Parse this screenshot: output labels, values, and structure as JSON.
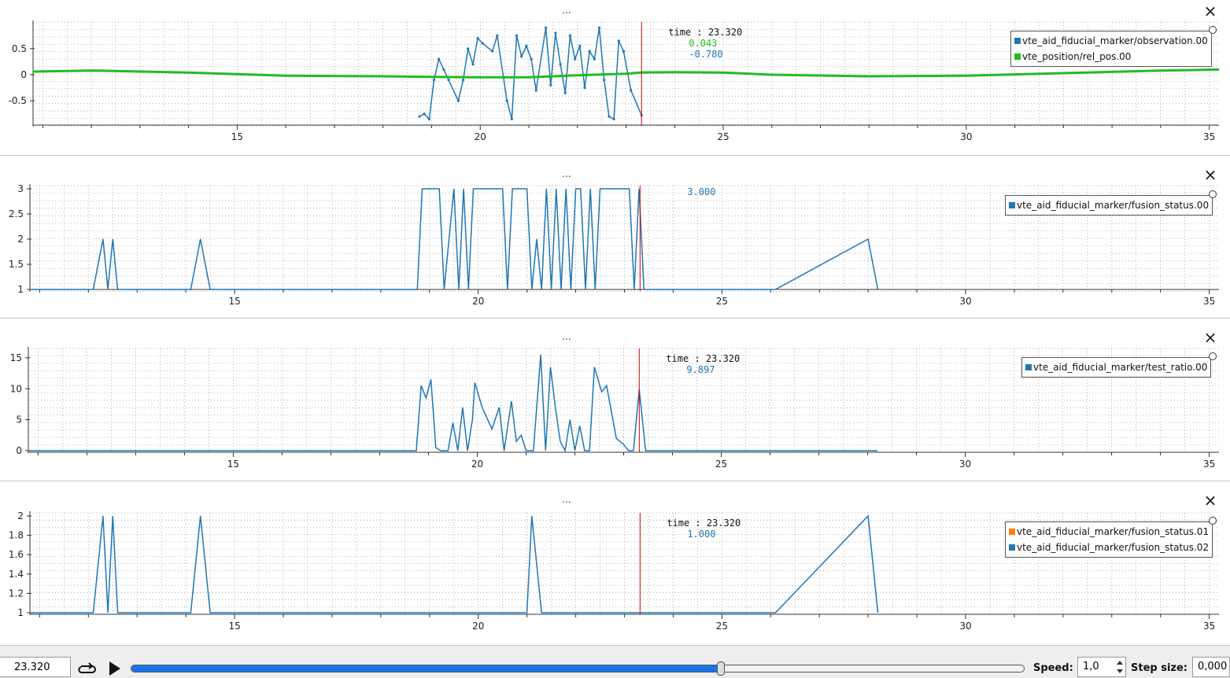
{
  "x_axis": {
    "range": [
      10.8,
      35.2
    ],
    "ticks": [
      15,
      20,
      25,
      30,
      35
    ]
  },
  "cursor": {
    "time_label": "time : 23.320",
    "time": 23.32,
    "color": "#dd0000"
  },
  "panels": [
    {
      "title": "...",
      "y_ticks": [
        "0.5",
        "0",
        "-0.5"
      ],
      "y_tick_values": [
        0.5,
        0,
        -0.5
      ],
      "ylim": [
        -0.95,
        0.95
      ],
      "legend": [
        {
          "label": "vte_aid_fiducial_marker/observation.00",
          "color": "#1f77b4"
        },
        {
          "label": "vte_position/rel_pos.00",
          "color": "#22bb22"
        }
      ],
      "tooltip": {
        "time": "time : 23.320",
        "values": [
          {
            "text": "0.043",
            "color": "#22bb22"
          },
          {
            "text": "-0.780",
            "color": "#1f77b4"
          }
        ]
      }
    },
    {
      "title": "...",
      "y_ticks": [
        "3",
        "2.5",
        "2",
        "1.5",
        "1"
      ],
      "y_tick_values": [
        3,
        2.5,
        2,
        1.5,
        1
      ],
      "ylim": [
        1,
        3
      ],
      "legend": [
        {
          "label": "vte_aid_fiducial_marker/fusion_status.00",
          "color": "#1f77b4"
        }
      ],
      "tooltip": {
        "time": "",
        "values": [
          {
            "text": "3.000",
            "color": "#1f77b4"
          }
        ]
      }
    },
    {
      "title": "...",
      "y_ticks": [
        "15",
        "10",
        "5",
        "0"
      ],
      "y_tick_values": [
        15,
        10,
        5,
        0
      ],
      "ylim": [
        0,
        16
      ],
      "legend": [
        {
          "label": "vte_aid_fiducial_marker/test_ratio.00",
          "color": "#1f77b4"
        }
      ],
      "tooltip": {
        "time": "time : 23.320",
        "values": [
          {
            "text": "9.897",
            "color": "#1f77b4"
          }
        ]
      }
    },
    {
      "title": "...",
      "y_ticks": [
        "2",
        "1.8",
        "1.6",
        "1.4",
        "1.2",
        "1"
      ],
      "y_tick_values": [
        2,
        1.8,
        1.6,
        1.4,
        1.2,
        1
      ],
      "ylim": [
        1,
        2
      ],
      "legend": [
        {
          "label": "vte_aid_fiducial_marker/fusion_status.01",
          "color": "#ff7f0e"
        },
        {
          "label": "vte_aid_fiducial_marker/fusion_status.02",
          "color": "#1f77b4"
        }
      ],
      "tooltip": {
        "time": "time : 23.320",
        "values": [
          {
            "text": "1.000",
            "color": "#1f77b4"
          }
        ]
      }
    }
  ],
  "chart_data": [
    {
      "type": "line",
      "title": "...",
      "xlim": [
        10.8,
        35.2
      ],
      "ylim": [
        -0.95,
        0.95
      ],
      "series": [
        {
          "name": "vte_aid_fiducial_marker/observation.00",
          "x": [
            18.75,
            18.85,
            18.95,
            19.05,
            19.15,
            19.25,
            19.35,
            19.55,
            19.65,
            19.75,
            19.85,
            19.95,
            20.05,
            20.25,
            20.35,
            20.55,
            20.65,
            20.75,
            20.85,
            20.95,
            21.05,
            21.15,
            21.35,
            21.45,
            21.55,
            21.65,
            21.75,
            21.85,
            21.95,
            22.05,
            22.15,
            22.25,
            22.35,
            22.45,
            22.55,
            22.65,
            22.75,
            22.85,
            22.95,
            23.1,
            23.32
          ],
          "y": [
            -0.8,
            -0.75,
            -0.85,
            -0.1,
            0.3,
            0.1,
            -0.1,
            -0.5,
            -0.1,
            0.5,
            0.2,
            0.7,
            0.6,
            0.45,
            0.75,
            -0.5,
            -0.85,
            0.75,
            0.35,
            0.55,
            0.3,
            -0.3,
            0.9,
            -0.2,
            0.8,
            0.2,
            -0.35,
            0.75,
            0.3,
            0.55,
            -0.25,
            0.45,
            0.3,
            0.9,
            -0.1,
            -0.8,
            -0.85,
            0.65,
            0.45,
            -0.3,
            -0.78
          ]
        },
        {
          "name": "vte_position/rel_pos.00",
          "x": [
            10.8,
            12,
            14,
            16,
            18,
            19,
            20,
            21,
            22,
            23,
            23.32,
            24,
            25,
            26,
            28,
            30,
            32,
            34,
            35.2
          ],
          "y": [
            0.06,
            0.08,
            0.04,
            -0.02,
            -0.03,
            -0.04,
            -0.05,
            -0.05,
            -0.01,
            0.02,
            0.043,
            0.05,
            0.04,
            0.0,
            -0.03,
            -0.02,
            0.03,
            0.08,
            0.1
          ]
        }
      ]
    },
    {
      "type": "line",
      "title": "...",
      "xlim": [
        10.8,
        35.2
      ],
      "ylim": [
        1,
        3
      ],
      "series": [
        {
          "name": "vte_aid_fiducial_marker/fusion_status.00",
          "x": [
            10.8,
            12.1,
            12.3,
            12.4,
            12.5,
            12.6,
            14.1,
            14.3,
            14.5,
            18.75,
            18.85,
            19.2,
            19.3,
            19.5,
            19.6,
            19.7,
            19.8,
            19.9,
            20.0,
            20.5,
            20.6,
            20.7,
            21.0,
            21.1,
            21.2,
            21.3,
            21.4,
            21.5,
            21.6,
            21.7,
            21.8,
            21.9,
            22.0,
            22.1,
            22.2,
            22.3,
            22.4,
            22.5,
            23.1,
            23.2,
            23.3,
            23.4,
            26.1,
            28.0,
            28.2
          ],
          "y": [
            1,
            1,
            2,
            1,
            2,
            1,
            1,
            2,
            1,
            1,
            3,
            3,
            1,
            3,
            1,
            3,
            1,
            3,
            3,
            3,
            1,
            3,
            3,
            1,
            2,
            1,
            3,
            1,
            3,
            1,
            3,
            1,
            3,
            3,
            1,
            3,
            1,
            3,
            3,
            1,
            3,
            1,
            1,
            2,
            1
          ]
        }
      ]
    },
    {
      "type": "line",
      "title": "...",
      "xlim": [
        10.8,
        35.2
      ],
      "ylim": [
        0,
        16
      ],
      "series": [
        {
          "name": "vte_aid_fiducial_marker/test_ratio.00",
          "x": [
            10.8,
            18.75,
            18.85,
            18.95,
            19.05,
            19.15,
            19.25,
            19.4,
            19.5,
            19.6,
            19.7,
            19.8,
            19.9,
            19.95,
            20.1,
            20.3,
            20.45,
            20.55,
            20.7,
            20.8,
            20.9,
            21.0,
            21.05,
            21.15,
            21.3,
            21.4,
            21.5,
            21.6,
            21.7,
            21.8,
            21.9,
            22.0,
            22.1,
            22.2,
            22.3,
            22.4,
            22.55,
            22.65,
            22.85,
            23.0,
            23.1,
            23.2,
            23.32,
            23.45,
            28.2
          ],
          "y": [
            0,
            0,
            10.5,
            8.5,
            11.5,
            0.5,
            0,
            0,
            4.5,
            0,
            7,
            0,
            5,
            11,
            7,
            3.5,
            7,
            0,
            8,
            1.5,
            2.5,
            0,
            0,
            0,
            15.5,
            0,
            13.5,
            7,
            1.5,
            0,
            5,
            0,
            4,
            0,
            0,
            13.5,
            9.5,
            10.5,
            2,
            1,
            0,
            0,
            9.897,
            0,
            0
          ]
        }
      ]
    },
    {
      "type": "line",
      "title": "...",
      "xlim": [
        10.8,
        35.2
      ],
      "ylim": [
        1,
        2
      ],
      "series": [
        {
          "name": "vte_aid_fiducial_marker/fusion_status.01",
          "x": [],
          "y": []
        },
        {
          "name": "vte_aid_fiducial_marker/fusion_status.02",
          "x": [
            10.8,
            12.1,
            12.3,
            12.4,
            12.5,
            12.6,
            14.1,
            14.3,
            14.5,
            21.0,
            21.1,
            21.3,
            26.1,
            28.0,
            28.2
          ],
          "y": [
            1,
            1,
            2,
            1,
            2,
            1,
            1,
            2,
            1,
            1,
            2,
            1,
            1,
            2,
            1
          ]
        }
      ]
    }
  ],
  "controls": {
    "current_time": "23.320",
    "loop_icon": "loop-icon",
    "play_icon": "play-icon",
    "progress": 0.66,
    "speed_label": "Speed:",
    "speed_value": "1,0",
    "step_label": "Step size:",
    "step_value": "0,000"
  }
}
